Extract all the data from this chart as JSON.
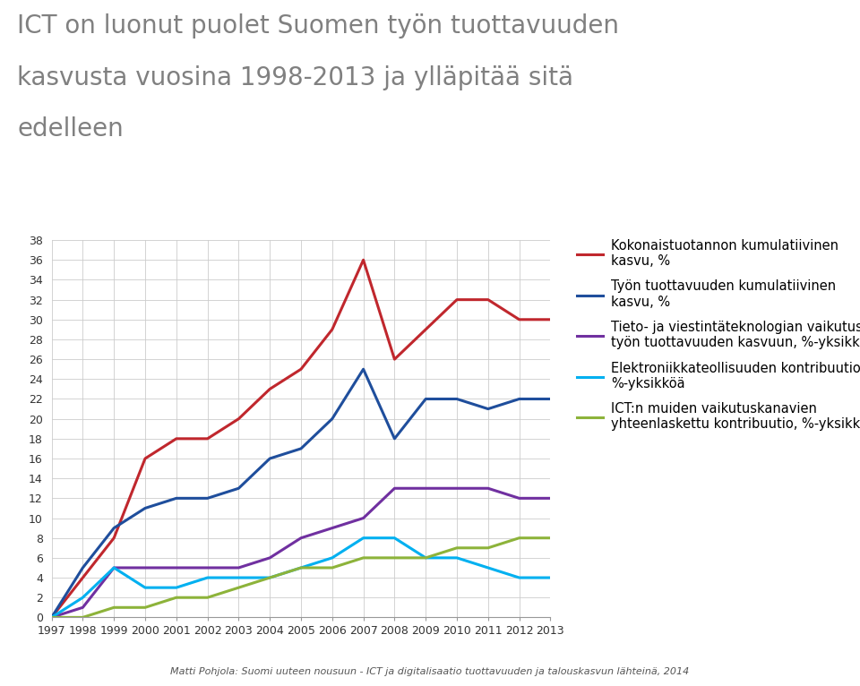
{
  "title_line1": "ICT on luonut puolet Suomen työn tuottavuuden",
  "title_line2": "kasvusta vuosina 1998-2013 ja ylläpitää sitä",
  "title_line3": "edelleen",
  "title_color": "#808080",
  "footnote": "Matti Pohjola: Suomi uuteen nousuun - ICT ja digitalisaatio tuottavuuden ja talouskasvun lähteinä, 2014",
  "years": [
    1997,
    1998,
    1999,
    2000,
    2001,
    2002,
    2003,
    2004,
    2005,
    2006,
    2007,
    2008,
    2009,
    2010,
    2011,
    2012,
    2013
  ],
  "series": [
    {
      "label": "Kokonaistuotannon kumulatiivinen\nkasvu, %",
      "color": "#C0272D",
      "linewidth": 2.2,
      "values": [
        0,
        4,
        8,
        16,
        18,
        18,
        20,
        23,
        25,
        29,
        36,
        26,
        29,
        32,
        32,
        30,
        30
      ]
    },
    {
      "label": "Työn tuottavuuden kumulatiivinen\nkasvu, %",
      "color": "#1F4E9C",
      "linewidth": 2.2,
      "values": [
        0,
        5,
        9,
        11,
        12,
        12,
        13,
        16,
        17,
        20,
        25,
        18,
        22,
        22,
        21,
        22,
        22
      ]
    },
    {
      "label": "Tieto- ja viestintäteknologian vaikutus\ntyön tuottavuuden kasvuun, %-yksikköä",
      "color": "#7030A0",
      "linewidth": 2.2,
      "values": [
        0,
        1,
        5,
        5,
        5,
        5,
        5,
        6,
        8,
        9,
        10,
        13,
        13,
        13,
        13,
        12,
        12
      ]
    },
    {
      "label": "Elektroniikkateollisuuden kontribuutio,\n%-yksikköä",
      "color": "#00B0F0",
      "linewidth": 2.2,
      "values": [
        0,
        2,
        5,
        3,
        3,
        4,
        4,
        4,
        5,
        6,
        8,
        8,
        6,
        6,
        5,
        4,
        4
      ]
    },
    {
      "label": "ICT:n muiden vaikutuskanavien\nyhteenlaskettu kontribuutio, %-yksikköä",
      "color": "#8DB33A",
      "linewidth": 2.2,
      "values": [
        0,
        0,
        1,
        1,
        2,
        2,
        3,
        4,
        5,
        5,
        6,
        6,
        6,
        7,
        7,
        8,
        8
      ]
    }
  ],
  "ylim": [
    0,
    38
  ],
  "yticks": [
    0,
    2,
    4,
    6,
    8,
    10,
    12,
    14,
    16,
    18,
    20,
    22,
    24,
    26,
    28,
    30,
    32,
    34,
    36,
    38
  ],
  "background_color": "#FFFFFF",
  "grid_color": "#CCCCCC",
  "legend_fontsize": 10.5,
  "title_fontsize": 20
}
